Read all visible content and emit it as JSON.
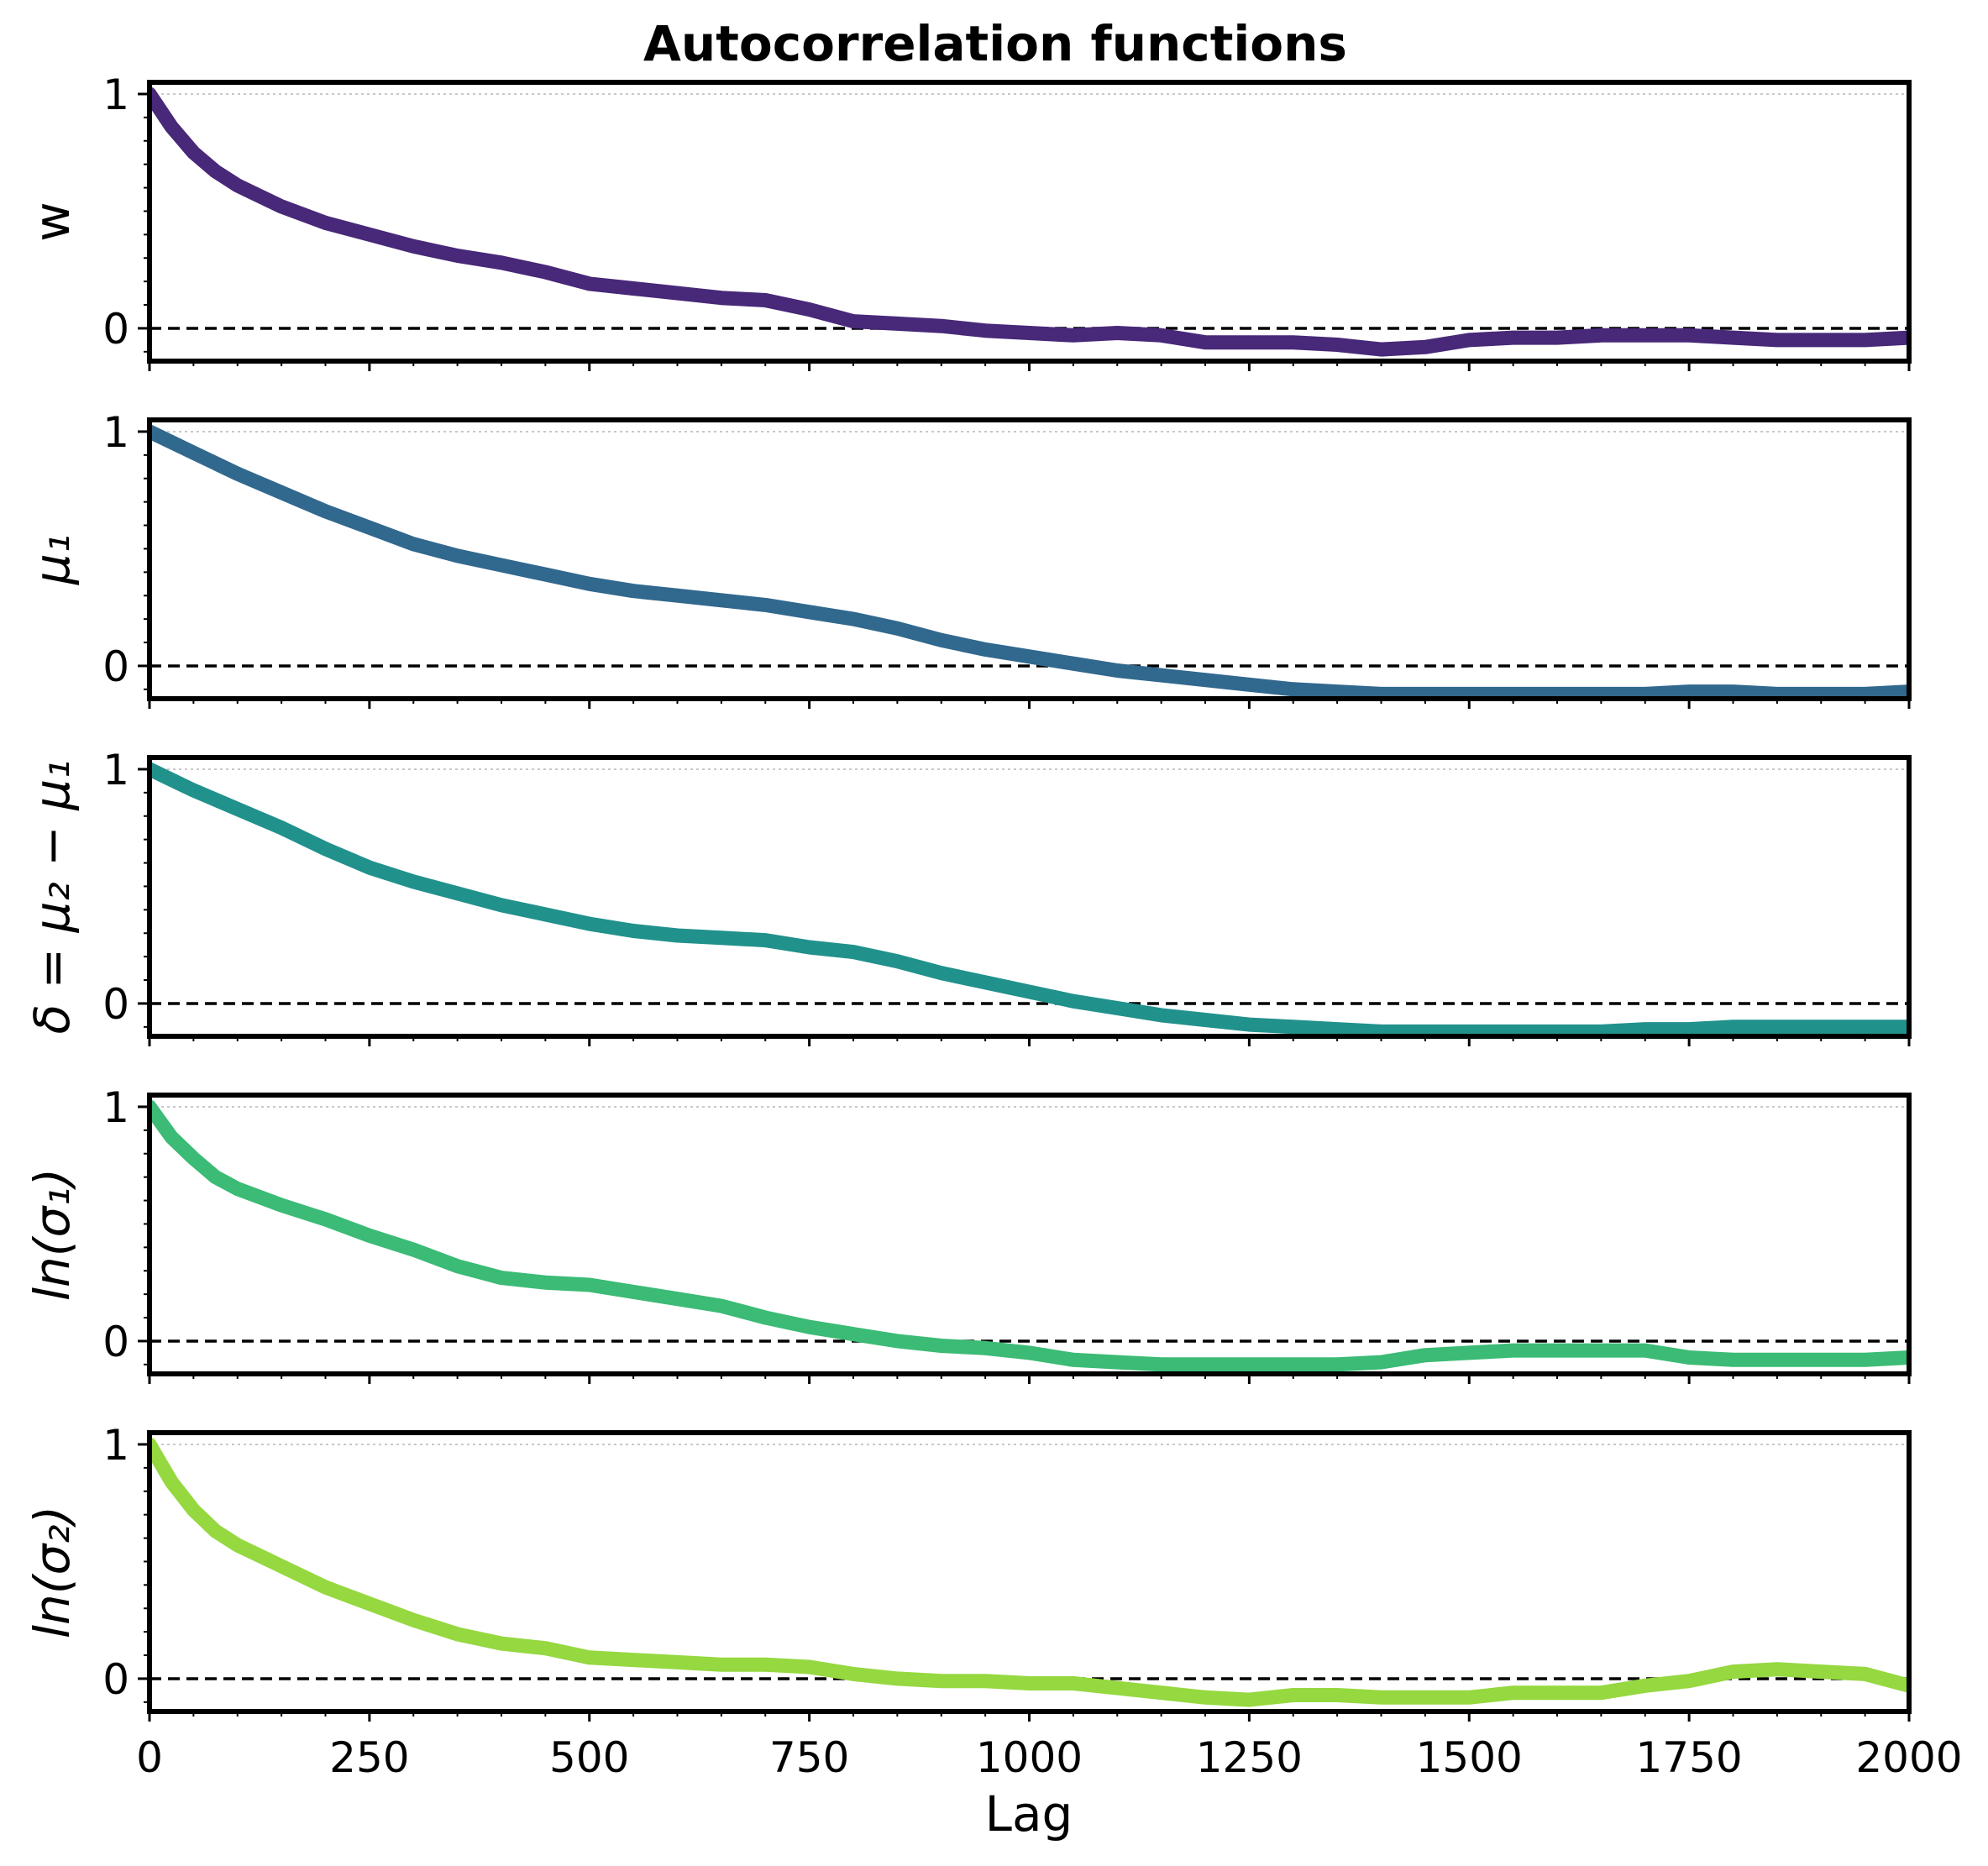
{
  "chart_data": {
    "type": "line",
    "title": "Autocorrelation functions",
    "xlabel": "Lag",
    "xlim": [
      0,
      2000
    ],
    "x_ticks": [
      0,
      250,
      500,
      750,
      1000,
      1250,
      1500,
      1750,
      2000
    ],
    "shared_x": true,
    "reference_line": {
      "y": 0,
      "style": "dashed",
      "color": "#000000"
    },
    "gridline": {
      "y": 1,
      "style": "dotted",
      "color": "#c8c8c8"
    },
    "panels": [
      {
        "ylabel": "w",
        "ylabel_style": "plain",
        "color": "#482878",
        "ylim": [
          -0.14,
          1.05
        ],
        "y_ticks": [
          0,
          1
        ],
        "x": [
          0,
          25,
          50,
          75,
          100,
          150,
          200,
          250,
          300,
          350,
          400,
          450,
          500,
          550,
          600,
          650,
          700,
          750,
          800,
          850,
          900,
          950,
          1000,
          1050,
          1100,
          1150,
          1200,
          1250,
          1300,
          1350,
          1400,
          1450,
          1500,
          1550,
          1600,
          1650,
          1700,
          1750,
          1800,
          1850,
          1900,
          1950,
          2000
        ],
        "values": [
          1.0,
          0.86,
          0.75,
          0.67,
          0.61,
          0.52,
          0.45,
          0.4,
          0.35,
          0.31,
          0.28,
          0.24,
          0.19,
          0.17,
          0.15,
          0.13,
          0.12,
          0.08,
          0.03,
          0.02,
          0.01,
          -0.01,
          -0.02,
          -0.03,
          -0.02,
          -0.03,
          -0.06,
          -0.06,
          -0.06,
          -0.07,
          -0.09,
          -0.08,
          -0.05,
          -0.04,
          -0.04,
          -0.03,
          -0.03,
          -0.03,
          -0.04,
          -0.05,
          -0.05,
          -0.05,
          -0.04
        ]
      },
      {
        "ylabel": "μ₁",
        "ylabel_style": "math",
        "color": "#31688e",
        "ylim": [
          -0.14,
          1.05
        ],
        "y_ticks": [
          0,
          1
        ],
        "x": [
          0,
          50,
          100,
          150,
          200,
          250,
          300,
          350,
          400,
          450,
          500,
          550,
          600,
          650,
          700,
          750,
          800,
          850,
          900,
          950,
          1000,
          1050,
          1100,
          1150,
          1200,
          1250,
          1300,
          1350,
          1400,
          1450,
          1500,
          1550,
          1600,
          1650,
          1700,
          1750,
          1800,
          1850,
          1900,
          1950,
          2000
        ],
        "values": [
          1.0,
          0.91,
          0.82,
          0.74,
          0.66,
          0.59,
          0.52,
          0.47,
          0.43,
          0.39,
          0.35,
          0.32,
          0.3,
          0.28,
          0.26,
          0.23,
          0.2,
          0.16,
          0.11,
          0.07,
          0.04,
          0.01,
          -0.02,
          -0.04,
          -0.06,
          -0.08,
          -0.1,
          -0.11,
          -0.12,
          -0.12,
          -0.12,
          -0.12,
          -0.12,
          -0.12,
          -0.12,
          -0.11,
          -0.11,
          -0.12,
          -0.12,
          -0.12,
          -0.11
        ]
      },
      {
        "ylabel": "δ = μ₂ − μ₁",
        "ylabel_style": "math",
        "color": "#21918c",
        "ylim": [
          -0.14,
          1.05
        ],
        "y_ticks": [
          0,
          1
        ],
        "x": [
          0,
          50,
          100,
          150,
          200,
          250,
          300,
          350,
          400,
          450,
          500,
          550,
          600,
          650,
          700,
          750,
          800,
          850,
          900,
          950,
          1000,
          1050,
          1100,
          1150,
          1200,
          1250,
          1300,
          1350,
          1400,
          1450,
          1500,
          1550,
          1600,
          1650,
          1700,
          1750,
          1800,
          1850,
          1900,
          1950,
          2000
        ],
        "values": [
          1.0,
          0.91,
          0.83,
          0.75,
          0.66,
          0.58,
          0.52,
          0.47,
          0.42,
          0.38,
          0.34,
          0.31,
          0.29,
          0.28,
          0.27,
          0.24,
          0.22,
          0.18,
          0.13,
          0.09,
          0.05,
          0.01,
          -0.02,
          -0.05,
          -0.07,
          -0.09,
          -0.1,
          -0.11,
          -0.12,
          -0.12,
          -0.12,
          -0.12,
          -0.12,
          -0.12,
          -0.11,
          -0.11,
          -0.1,
          -0.1,
          -0.1,
          -0.1,
          -0.1
        ]
      },
      {
        "ylabel": "ln(σ₁)",
        "ylabel_style": "math",
        "color": "#3bbb75",
        "ylim": [
          -0.14,
          1.05
        ],
        "y_ticks": [
          0,
          1
        ],
        "x": [
          0,
          25,
          50,
          75,
          100,
          150,
          200,
          250,
          300,
          350,
          400,
          450,
          500,
          550,
          600,
          650,
          700,
          750,
          800,
          850,
          900,
          950,
          1000,
          1050,
          1100,
          1150,
          1200,
          1250,
          1300,
          1350,
          1400,
          1450,
          1500,
          1550,
          1600,
          1650,
          1700,
          1750,
          1800,
          1850,
          1900,
          1950,
          2000
        ],
        "values": [
          1.0,
          0.87,
          0.78,
          0.7,
          0.65,
          0.58,
          0.52,
          0.45,
          0.39,
          0.32,
          0.27,
          0.25,
          0.24,
          0.21,
          0.18,
          0.15,
          0.1,
          0.06,
          0.03,
          0.0,
          -0.02,
          -0.03,
          -0.05,
          -0.08,
          -0.09,
          -0.1,
          -0.1,
          -0.1,
          -0.1,
          -0.1,
          -0.09,
          -0.06,
          -0.05,
          -0.04,
          -0.04,
          -0.04,
          -0.04,
          -0.07,
          -0.08,
          -0.08,
          -0.08,
          -0.08,
          -0.07
        ]
      },
      {
        "ylabel": "ln(σ₂)",
        "ylabel_style": "math",
        "color": "#95d840",
        "ylim": [
          -0.14,
          1.05
        ],
        "y_ticks": [
          0,
          1
        ],
        "x": [
          0,
          25,
          50,
          75,
          100,
          150,
          200,
          250,
          300,
          350,
          400,
          450,
          500,
          550,
          600,
          650,
          700,
          750,
          800,
          850,
          900,
          950,
          1000,
          1050,
          1100,
          1150,
          1200,
          1250,
          1300,
          1350,
          1400,
          1450,
          1500,
          1550,
          1600,
          1650,
          1700,
          1750,
          1800,
          1850,
          1900,
          1950,
          2000
        ],
        "values": [
          1.0,
          0.84,
          0.72,
          0.63,
          0.57,
          0.48,
          0.39,
          0.32,
          0.25,
          0.19,
          0.15,
          0.13,
          0.09,
          0.08,
          0.07,
          0.06,
          0.06,
          0.05,
          0.02,
          0.0,
          -0.01,
          -0.01,
          -0.02,
          -0.02,
          -0.04,
          -0.06,
          -0.08,
          -0.09,
          -0.07,
          -0.07,
          -0.08,
          -0.08,
          -0.08,
          -0.06,
          -0.06,
          -0.06,
          -0.03,
          -0.01,
          0.03,
          0.04,
          0.03,
          0.02,
          -0.03
        ]
      }
    ]
  }
}
